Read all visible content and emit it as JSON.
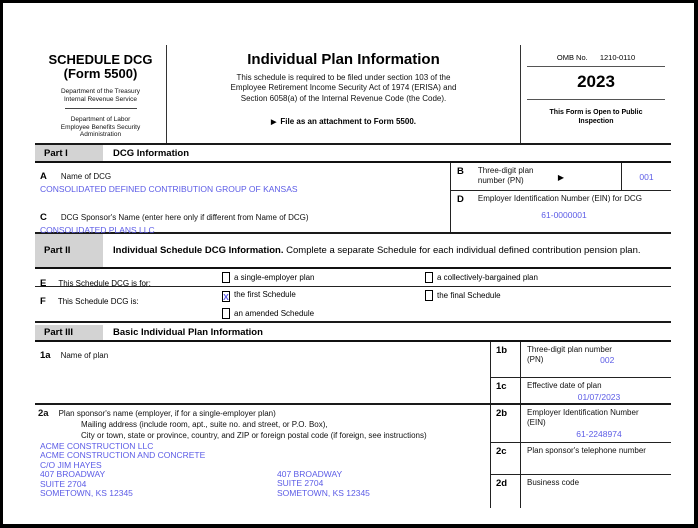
{
  "header": {
    "schedule_title": "SCHEDULE DCG",
    "form_number": "(Form 5500)",
    "agency1_line1": "Department of the Treasury",
    "agency1_line2": "Internal Revenue Service",
    "agency2_line1": "Department of Labor",
    "agency2_line2": "Employee Benefits Security",
    "agency2_line3": "Administration",
    "main_title": "Individual Plan Information",
    "subtitle_line1": "This schedule is required to be filed under section 103 of the",
    "subtitle_line2": "Employee Retirement Income Security Act of 1974 (ERISA) and",
    "subtitle_line3": "Section 6058(a) of the Internal Revenue Code (the Code).",
    "file_note_arrow": "▶",
    "file_note": "File as an attachment to Form 5500.",
    "omb_label": "OMB No.",
    "omb_number": "1210-0110",
    "year": "2023",
    "inspection_line1": "This Form is Open to Public",
    "inspection_line2": "Inspection"
  },
  "part1": {
    "label": "Part I",
    "title": "DCG Information",
    "a_letter": "A",
    "a_label": "Name of DCG",
    "a_value": "CONSOLIDATED DEFINED CONTRIBUTION GROUP OF KANSAS",
    "b_letter": "B",
    "b_label": "Three-digit plan number (PN)",
    "b_arrow": "▶",
    "b_value": "001",
    "c_letter": "C",
    "c_label": "DCG Sponsor's Name (enter here only if different from Name of DCG)",
    "c_value": "CONSOLIDATED PLANS LLC",
    "d_letter": "D",
    "d_label": "Employer Identification Number (EIN) for DCG",
    "d_value": "61-0000001"
  },
  "part2": {
    "label": "Part II",
    "title": "Individual Schedule DCG Information.",
    "title_rest": "Complete a separate Schedule for each individual defined contribution pension plan.",
    "e_letter": "E",
    "e_label": "This Schedule DCG is for:",
    "e_option1": "a single-employer plan",
    "e_option2": "a collectively-bargained plan",
    "f_letter": "F",
    "f_label": "This Schedule DCG is:",
    "f_option1": "the first Schedule",
    "f_option1_mark": "X",
    "f_option2": "the final Schedule",
    "f_option3": "an amended Schedule"
  },
  "part3": {
    "label": "Part III",
    "title": "Basic Individual Plan Information",
    "f1a_num": "1a",
    "f1a_label": "Name of plan",
    "f1a_value": "",
    "f1b_num": "1b",
    "f1b_label_line1": "Three-digit plan number",
    "f1b_label_line2": "(PN)",
    "f1b_value": "002",
    "f1c_num": "1c",
    "f1c_label": "Effective date of plan",
    "f1c_value": "01/07/2023",
    "f2a_num": "2a",
    "f2a_label_line1": "Plan sponsor's name (employer, if for a single-employer plan)",
    "f2a_label_line2": "Mailing address (include room, apt., suite no. and street, or P.O. Box),",
    "f2a_label_line3": "City or town, state or province, country, and ZIP or foreign postal code (if foreign, see instructions)",
    "f2a_value_lines": [
      "ACME CONSTRUCTION LLC",
      "ACME CONSTRUCTION AND CONCRETE",
      "C/O JIM HAYES",
      "407 BROADWAY",
      "SUITE 2704",
      "SOMETOWN, KS 12345"
    ],
    "f2a_value2_lines": [
      "407 BROADWAY",
      "SUITE 2704",
      "SOMETOWN, KS 12345"
    ],
    "f2b_num": "2b",
    "f2b_label_line1": "Employer Identification Number",
    "f2b_label_line2": "(EIN)",
    "f2b_value": "61-2248974",
    "f2c_num": "2c",
    "f2c_label": "Plan sponsor's telephone number",
    "f2c_value": "",
    "f2d_num": "2d",
    "f2d_label": "Business code",
    "f2d_value": ""
  },
  "colors": {
    "value_blue": "#5c5ce6",
    "part_bar_bg": "#d3d3d3"
  }
}
